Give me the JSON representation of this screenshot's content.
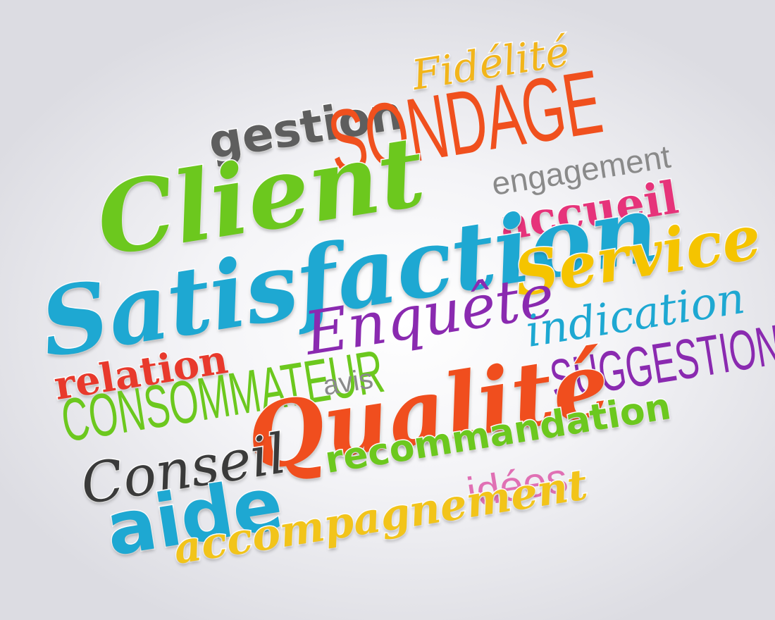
{
  "words": {
    "fidelite": "Fidélité",
    "gestion": "gestion",
    "sondage": "SONDAGE",
    "client": "Client",
    "engagement": "engagement",
    "accueil": "accueil",
    "satisfaction": "Satisfaction",
    "service": "Service",
    "enquete": "Enquête",
    "indication": "indication",
    "relation": "relation",
    "consommateur": "CONSOMMATEUR",
    "avis": "avis",
    "suggestion": "SUGGESTION",
    "qualite": "Qualité",
    "recommandation": "recommandation",
    "conseil": "Conseil",
    "idees": "idées",
    "aide": "aide",
    "accompagnement": "accompagnement"
  },
  "colors": {
    "yellow": "#f5c400",
    "orange_yellow": "#f2b51a",
    "gray": "#5e5e5e",
    "red_orange": "#f0501e",
    "green": "#6cc81e",
    "light_gray": "#8a8a8a",
    "pink": "#e6337a",
    "cyan": "#1ea8d2",
    "purple": "#8a2ab0",
    "red": "#e8392c",
    "dark": "#3a3a3a",
    "light_pink": "#e070b4"
  }
}
